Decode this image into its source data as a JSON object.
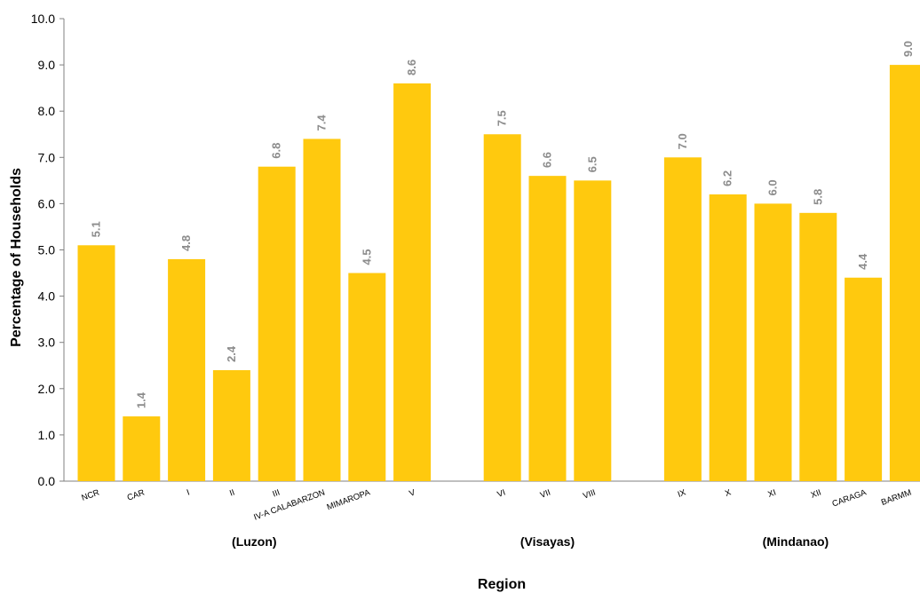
{
  "chart_data": {
    "type": "bar",
    "xlabel": "Region",
    "ylabel": "Percentage of Households",
    "ylim": [
      0,
      10
    ],
    "yticks": [
      "0.0",
      "1.0",
      "2.0",
      "3.0",
      "4.0",
      "5.0",
      "6.0",
      "7.0",
      "8.0",
      "9.0",
      "10.0"
    ],
    "grid": false,
    "bar_color": "#FFC90E",
    "label_color": "#8C8C8C",
    "groups": [
      {
        "name": "(Luzon)",
        "bars": [
          {
            "category": "NCR",
            "value": 5.1,
            "label": "5.1"
          },
          {
            "category": "CAR",
            "value": 1.4,
            "label": "1.4"
          },
          {
            "category": "I",
            "value": 4.8,
            "label": "4.8"
          },
          {
            "category": "II",
            "value": 2.4,
            "label": "2.4"
          },
          {
            "category": "III",
            "value": 6.8,
            "label": "6.8"
          },
          {
            "category": "IV-A CALABARZON",
            "value": 7.4,
            "label": "7.4"
          },
          {
            "category": "MIMAROPA",
            "value": 4.5,
            "label": "4.5"
          },
          {
            "category": "V",
            "value": 8.6,
            "label": "8.6"
          }
        ]
      },
      {
        "name": "(Visayas)",
        "bars": [
          {
            "category": "VI",
            "value": 7.5,
            "label": "7.5"
          },
          {
            "category": "VII",
            "value": 6.6,
            "label": "6.6"
          },
          {
            "category": "VIII",
            "value": 6.5,
            "label": "6.5"
          }
        ]
      },
      {
        "name": "(Mindanao)",
        "bars": [
          {
            "category": "IX",
            "value": 7.0,
            "label": "7.0"
          },
          {
            "category": "X",
            "value": 6.2,
            "label": "6.2"
          },
          {
            "category": "XI",
            "value": 6.0,
            "label": "6.0"
          },
          {
            "category": "XII",
            "value": 5.8,
            "label": "5.8"
          },
          {
            "category": "CARAGA",
            "value": 4.4,
            "label": "4.4"
          },
          {
            "category": "BARMM",
            "value": 9.0,
            "label": "9.0"
          }
        ]
      }
    ]
  }
}
